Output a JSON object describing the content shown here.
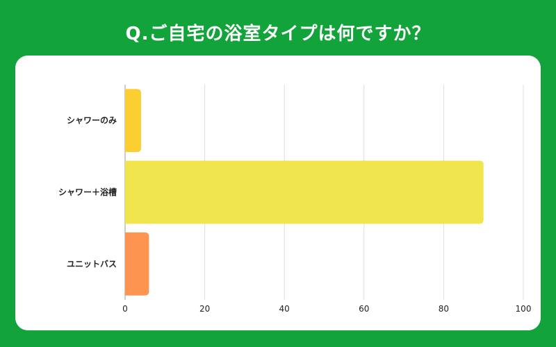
{
  "chart_data": {
    "type": "bar",
    "orientation": "horizontal",
    "title": "Q.ご自宅の浴室タイプは何ですか？",
    "xlabel": "",
    "ylabel": "",
    "categories": [
      "シャワーのみ",
      "シャワー＋浴槽",
      "ユニットバス"
    ],
    "values": [
      4,
      90,
      6
    ],
    "colors": [
      "#fbcf31",
      "#f0e54c",
      "#fd944f"
    ],
    "xlim": [
      0,
      100
    ],
    "xticks": [
      0,
      20,
      40,
      60,
      80,
      100
    ],
    "grid": true,
    "legend": "none"
  },
  "colors": {
    "background": "#12a33b",
    "card": "#ffffff",
    "gridline": "#dddddd",
    "axis": "#999999"
  }
}
